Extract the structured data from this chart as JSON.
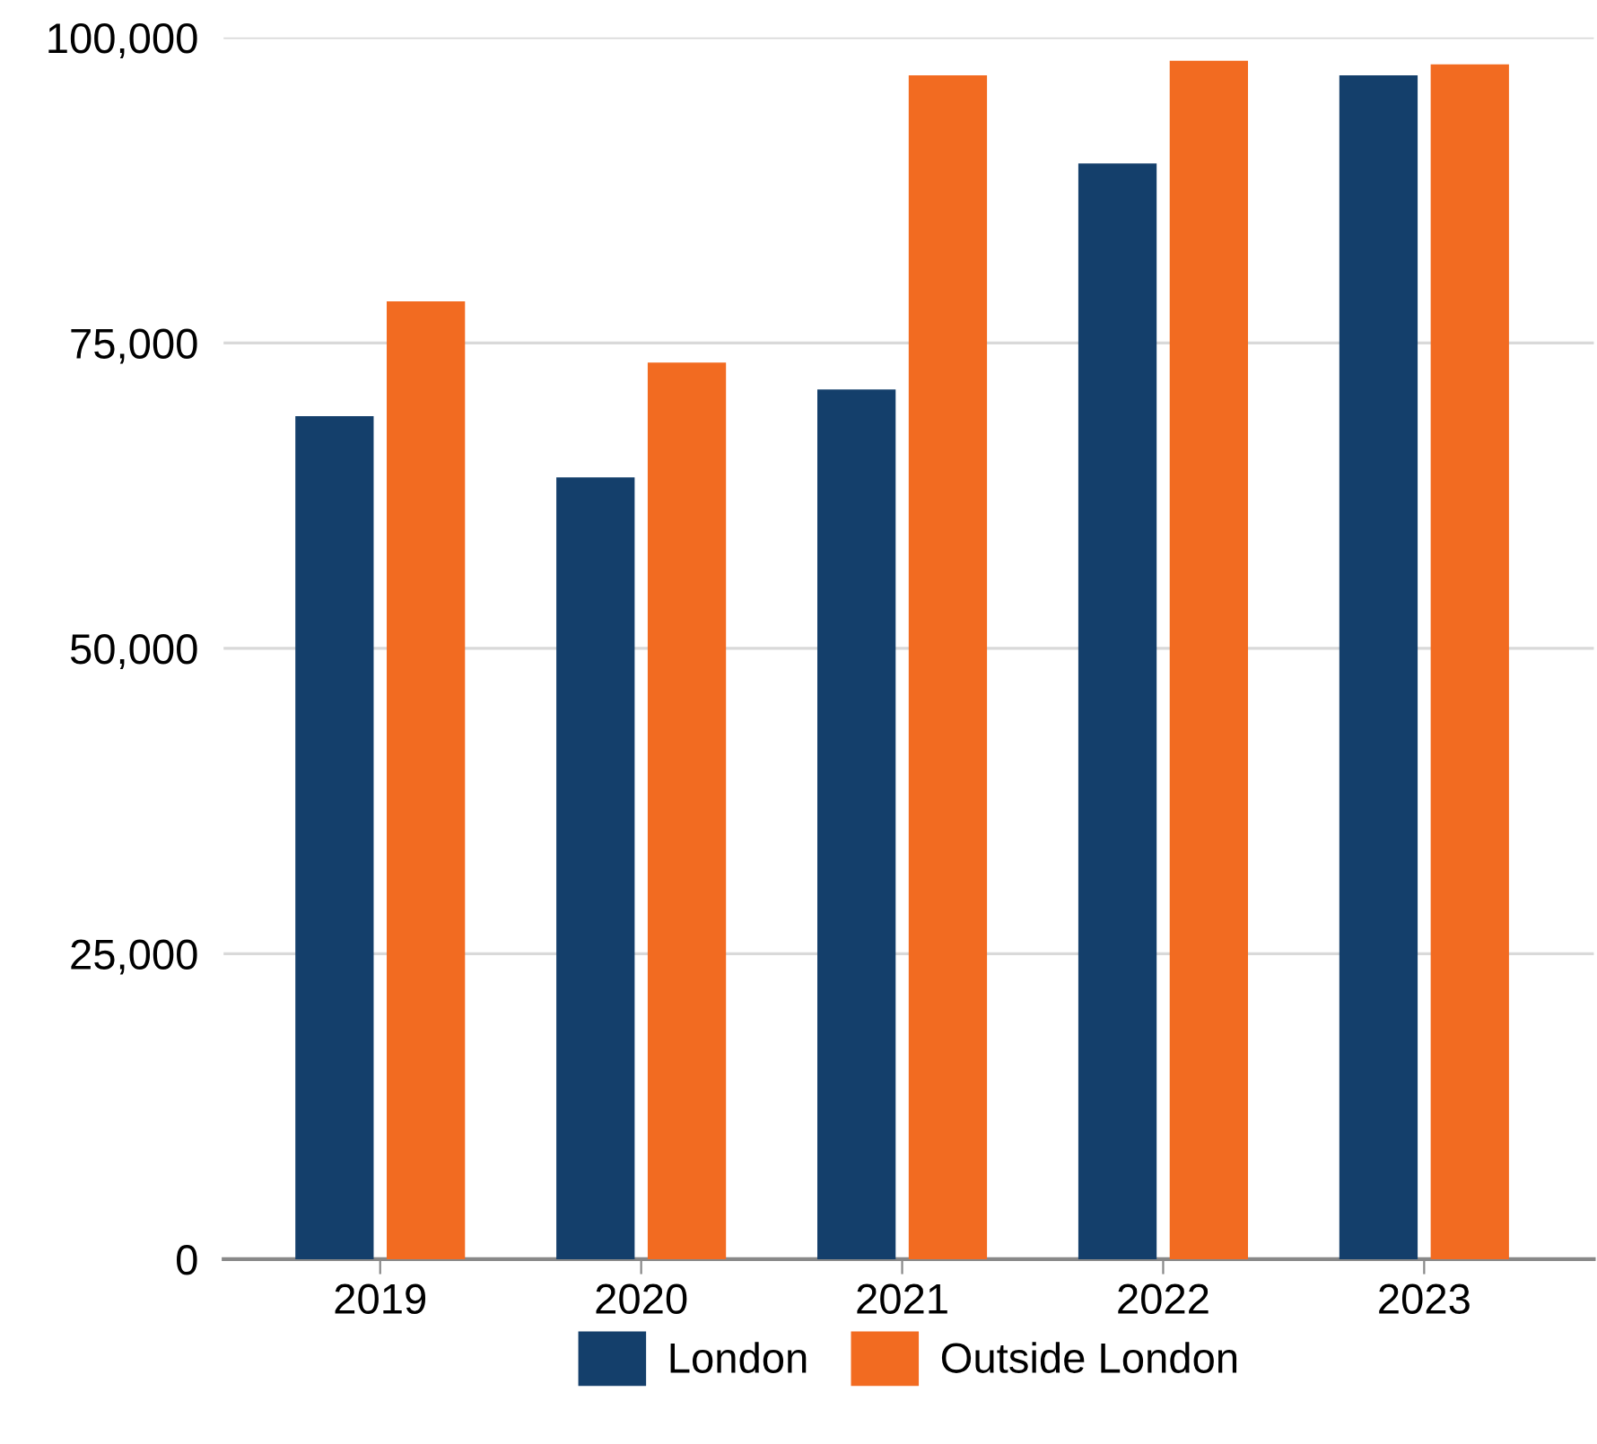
{
  "chart_data": {
    "type": "bar",
    "categories": [
      "2019",
      "2020",
      "2021",
      "2022",
      "2023"
    ],
    "series": [
      {
        "name": "London",
        "color": "#143f6b",
        "values": [
          69000,
          64000,
          71200,
          89700,
          96900
        ]
      },
      {
        "name": "Outside London",
        "color": "#f26b21",
        "values": [
          78400,
          73400,
          96900,
          98100,
          97800
        ]
      }
    ],
    "ylim": [
      0,
      100000
    ],
    "yticks": [
      {
        "value": 0,
        "label": "0"
      },
      {
        "value": 25000,
        "label": "25,000"
      },
      {
        "value": 50000,
        "label": "50,000"
      },
      {
        "value": 75000,
        "label": "75,000"
      },
      {
        "value": 100000,
        "label": "100,000"
      }
    ],
    "grid": "y",
    "legend": "bottom"
  }
}
